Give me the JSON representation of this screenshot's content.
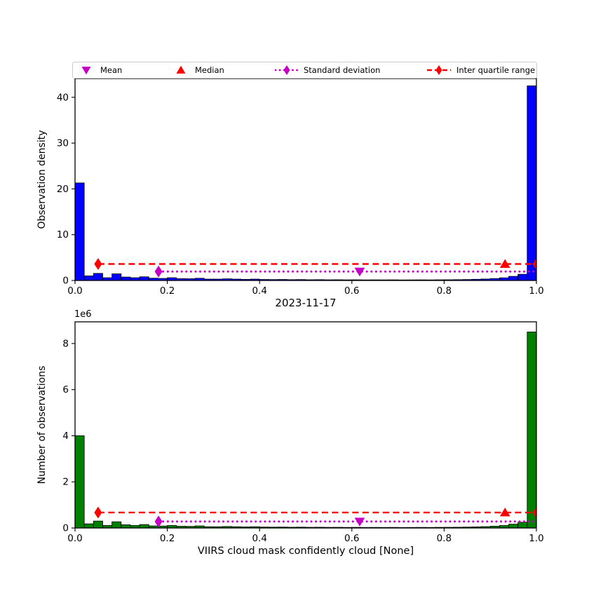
{
  "figure": {
    "background": "#ffffff"
  },
  "legend": {
    "items": [
      {
        "label": "Mean",
        "marker": "triangle-down",
        "color": "#C400C4"
      },
      {
        "label": "Median",
        "marker": "triangle-up",
        "color": "#FF0000"
      },
      {
        "label": "Standard deviation",
        "marker": "diamond-dotted-line",
        "color": "#C400C4"
      },
      {
        "label": "Inter quartile range",
        "marker": "diamond-dashed-line",
        "color": "#FF0000"
      }
    ]
  },
  "chart_data": [
    {
      "type": "bar",
      "name": "observation-density-histogram",
      "ylabel": "Observation density",
      "bar_color": "#0000FF",
      "bar_edge_color": "#000000",
      "bin_start": 0.0,
      "bin_width": 0.02,
      "xlim": [
        0.0,
        1.0
      ],
      "ylim": [
        0.0,
        44.1
      ],
      "xticks": [
        0.0,
        0.2,
        0.4,
        0.6,
        0.8,
        1.0
      ],
      "xtick_labels": [
        "0.0",
        "0.2",
        "0.4",
        "0.6",
        "0.8",
        "1.0"
      ],
      "yticks": [
        0,
        10,
        20,
        30,
        40
      ],
      "grid": false,
      "values": [
        21.3,
        1.0,
        1.55,
        0.6,
        1.45,
        0.75,
        0.6,
        0.8,
        0.5,
        0.45,
        0.6,
        0.4,
        0.38,
        0.48,
        0.3,
        0.3,
        0.36,
        0.3,
        0.24,
        0.3,
        0.22,
        0.2,
        0.22,
        0.18,
        0.2,
        0.16,
        0.18,
        0.15,
        0.16,
        0.14,
        0.15,
        0.13,
        0.14,
        0.13,
        0.14,
        0.12,
        0.13,
        0.14,
        0.13,
        0.15,
        0.16,
        0.18,
        0.21,
        0.26,
        0.32,
        0.42,
        0.58,
        0.9,
        1.35,
        42.5
      ],
      "stats": {
        "mean_x": 0.617,
        "median_x": 0.932,
        "iqr": {
          "x1": 0.05,
          "x2": 1.0,
          "y": 3.6,
          "color": "#FF0000"
        },
        "std": {
          "x1": 0.181,
          "x2": 1.0,
          "y": 1.95,
          "color": "#C400C4"
        }
      }
    },
    {
      "type": "bar",
      "name": "observation-count-histogram",
      "title": "2023-11-17",
      "ylabel": "Number of observations",
      "xlabel": "VIIRS cloud mask confidently cloud [None]",
      "offset_label": "1e6",
      "bar_color": "#008000",
      "bar_edge_color": "#000000",
      "bin_start": 0.0,
      "bin_width": 0.02,
      "xlim": [
        0.0,
        1.0
      ],
      "ylim": [
        0.0,
        8.94
      ],
      "xticks": [
        0.0,
        0.2,
        0.4,
        0.6,
        0.8,
        1.0
      ],
      "xtick_labels": [
        "0.0",
        "0.2",
        "0.4",
        "0.6",
        "0.8",
        "1.0"
      ],
      "yticks": [
        0,
        2,
        4,
        6,
        8
      ],
      "grid": false,
      "values": [
        4.0,
        0.18,
        0.3,
        0.11,
        0.27,
        0.14,
        0.11,
        0.15,
        0.09,
        0.085,
        0.11,
        0.075,
        0.07,
        0.09,
        0.055,
        0.055,
        0.065,
        0.055,
        0.045,
        0.055,
        0.04,
        0.037,
        0.04,
        0.033,
        0.037,
        0.03,
        0.033,
        0.028,
        0.03,
        0.026,
        0.028,
        0.024,
        0.026,
        0.024,
        0.026,
        0.022,
        0.024,
        0.026,
        0.024,
        0.028,
        0.03,
        0.033,
        0.039,
        0.048,
        0.06,
        0.078,
        0.107,
        0.165,
        0.25,
        8.5
      ],
      "stats": {
        "mean_x": 0.617,
        "median_x": 0.932,
        "iqr": {
          "x1": 0.05,
          "x2": 1.0,
          "y": 0.67,
          "color": "#FF0000"
        },
        "std": {
          "x1": 0.181,
          "x2": 1.0,
          "y": 0.28,
          "color": "#C400C4"
        }
      }
    }
  ]
}
